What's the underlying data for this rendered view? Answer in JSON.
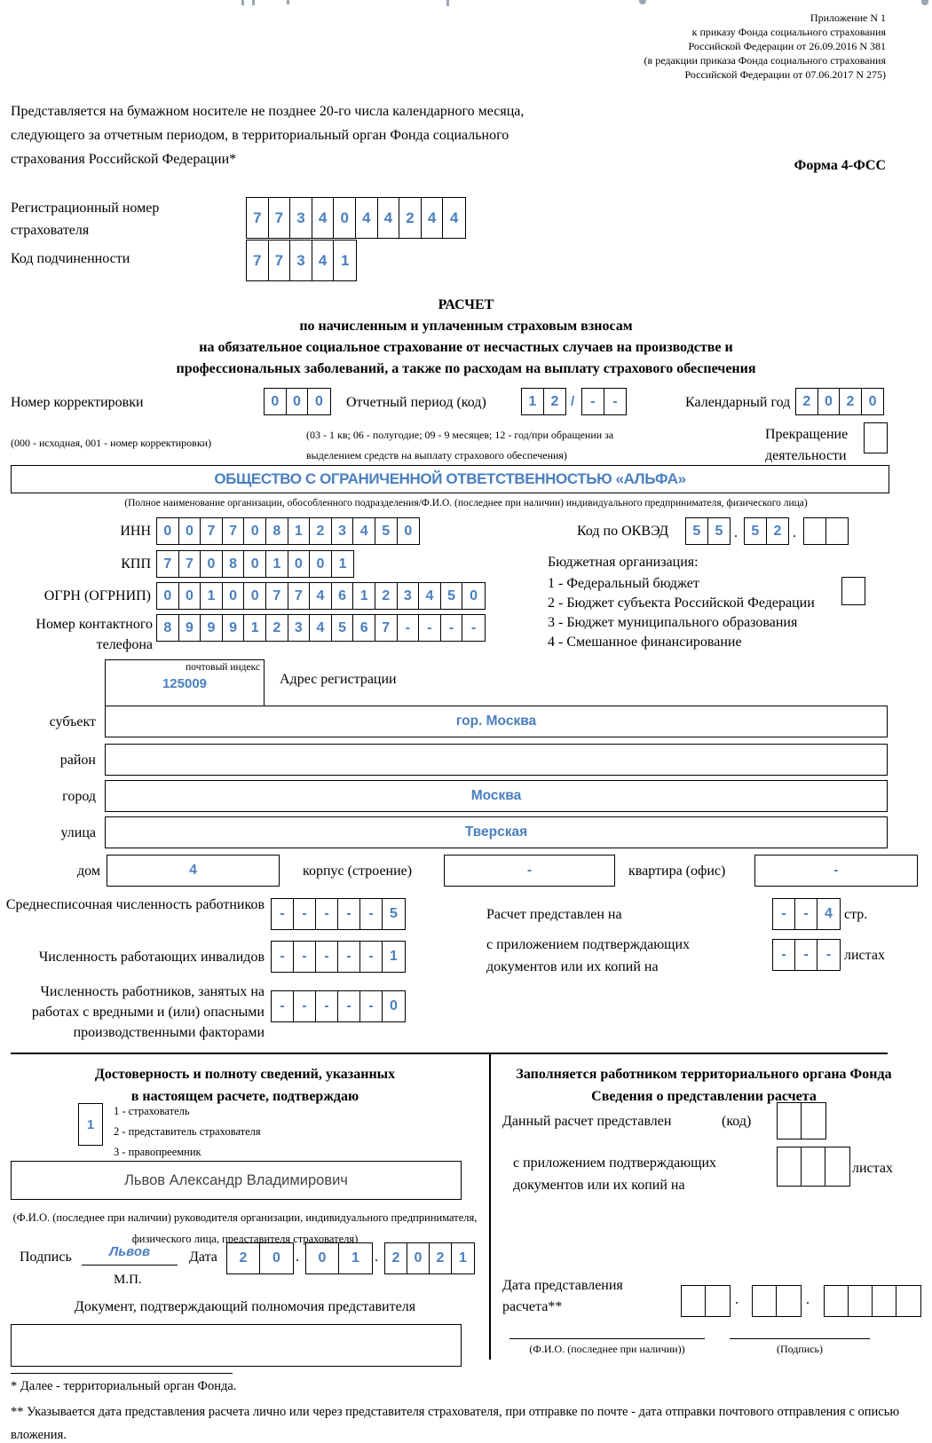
{
  "colors": {
    "value_blue": "#4a7fbf",
    "text_black": "#000000",
    "cropped_fragment_gray": "#9aa7b5"
  },
  "appendix": {
    "lines": [
      "Приложение N 1",
      "к приказу Фонда социального страхования",
      "Российской Федерации от 26.09.2016 N 381",
      "(в редакции приказа Фонда социального страхования",
      "Российской Федерации от 07.06.2017 N 275)"
    ]
  },
  "intro": {
    "lines": [
      "Представляется на бумажном носителе не позднее 20-го числа календарного месяца,",
      "следующего за отчетным периодом, в территориальный орган Фонда социального",
      "страхования Российской Федерации*"
    ]
  },
  "form_label": "Форма 4-ФСС",
  "registration": {
    "reg_label": "Регистрационный номер страхователя",
    "reg_number": "7734044244",
    "sub_label": "Код подчиненности",
    "sub_code": "77341"
  },
  "title": {
    "lines": [
      "РАСЧЕТ",
      "по начисленным и уплаченным страховым взносам",
      "на обязательное социальное страхование от несчастных случаев на производстве и",
      "профессиональных заболеваний, а также по расходам на выплату страхового обеспечения"
    ]
  },
  "period": {
    "correction_label": "Номер корректировки",
    "correction_value": "000",
    "correction_hint": "(000 - исходная, 001 - номер корректировки)",
    "period_label": "Отчетный период (код)",
    "period_value": "12",
    "slash": "/",
    "period_extra": "--",
    "period_hint_lines": [
      "(03 - 1 кв; 06 - полугодие; 09 - 9 месяцев; 12 - год/при обращении за",
      "выделением средств на выплату страхового обеспечения)"
    ],
    "year_label": "Календарный год",
    "year_value": "2020",
    "termination_lines": [
      "Прекращение",
      "деятельности"
    ]
  },
  "org": {
    "name": "ОБЩЕСТВО С ОГРАНИЧЕННОЙ ОТВЕТСТВЕННОСТЬЮ «АЛЬФА»",
    "name_hint": "(Полное наименование организации, обособленного подразделения/Ф.И.О. (последнее при наличии) индивидуального предпринимателя, физического лица)",
    "inn_label": "ИНН",
    "inn": "007708123450",
    "kpp_label": "КПП",
    "kpp": "770801001",
    "ogrn_label": "ОГРН (ОГРНИП)",
    "ogrn": "001007746123450",
    "phone_label": "Номер контактного телефона",
    "phone": "89991234567----",
    "okved_label": "Код по ОКВЭД",
    "okved_g1": "55",
    "okved_g2": "52",
    "okved_g3": "  ",
    "dot": "."
  },
  "budget": {
    "label": "Бюджетная организация:",
    "options": [
      "1 - Федеральный бюджет",
      "2 - Бюджет субъекта Российской Федерации",
      "3 - Бюджет муниципального образования",
      "4 - Смешанное финансирование"
    ]
  },
  "address": {
    "postal_label": "почтовый индекс",
    "postal_code": "125009",
    "reg_address_label": "Адрес регистрации",
    "subject_label": "субъект",
    "subject_value": "гор. Москва",
    "district_label": "район",
    "district_value": "",
    "city_label": "город",
    "city_value": "Москва",
    "street_label": "улица",
    "street_value": "Тверская",
    "house_label": "дом",
    "house_value": "4",
    "building_label": "корпус (строение)",
    "building_value": "-",
    "apartment_label": "квартира (офис)",
    "apartment_value": "-"
  },
  "counts": {
    "avg_label": "Среднесписочная численность работников",
    "avg_value": "-----5",
    "pages_label": "Расчет представлен на",
    "pages_value": "--4",
    "pages_suffix": "стр.",
    "disabled_label": "Численность работающих инвалидов",
    "disabled_value": "-----1",
    "attach_label_lines": [
      "с приложением подтверждающих",
      "документов или их копий на"
    ],
    "attach_value": "---",
    "attach_suffix": "листах",
    "hazard_label_lines": [
      "Численность работников, занятых на",
      "работах с вредными и (или) опасными",
      "производственными факторами"
    ],
    "hazard_value": "-----0"
  },
  "confirm": {
    "heading_lines": [
      "Достоверность и полноту сведений, указанных",
      "в настоящем расчете, подтверждаю"
    ],
    "status_value": "1",
    "status_options": [
      "1 - страхователь",
      "2 - представитель страхователя",
      "3 - правопреемник"
    ],
    "person_name": "Львов Александр Владимирович",
    "person_hint_lines": [
      "(Ф.И.О. (последнее при наличии) руководителя организации, индивидуального предпринимателя,",
      "физического лица, представителя страхователя)"
    ],
    "signature_label": "Подпись",
    "signature_value": "Львов",
    "stamp_label": "М.П.",
    "date_label": "Дата",
    "date_day": "20",
    "date_month": "01",
    "date_year": "2021",
    "document_label": "Документ, подтверждающий полномочия представителя"
  },
  "fund": {
    "heading_lines": [
      "Заполняется работником территориального органа Фонда",
      "Сведения о представлении расчета"
    ],
    "submitted_label": "Данный расчет представлен",
    "code_label": "(код)",
    "code_value": "  ",
    "attach_label_lines": [
      "с приложением подтверждающих",
      "документов или их копий на"
    ],
    "attach_value": "   ",
    "attach_suffix": "листах",
    "date_label_lines": [
      "Дата представления",
      "расчета**"
    ],
    "date_day": "  ",
    "date_month": "  ",
    "date_year": "    ",
    "fio_caption": "(Ф.И.О. (последнее при наличии))",
    "sign_caption": "(Подпись)"
  },
  "footnotes": {
    "note1": "* Далее - территориальный орган Фонда.",
    "note2": "** Указывается дата представления расчета лично или через представителя страхователя, при отправке по почте - дата отправки почтового отправления с описью вложения."
  }
}
